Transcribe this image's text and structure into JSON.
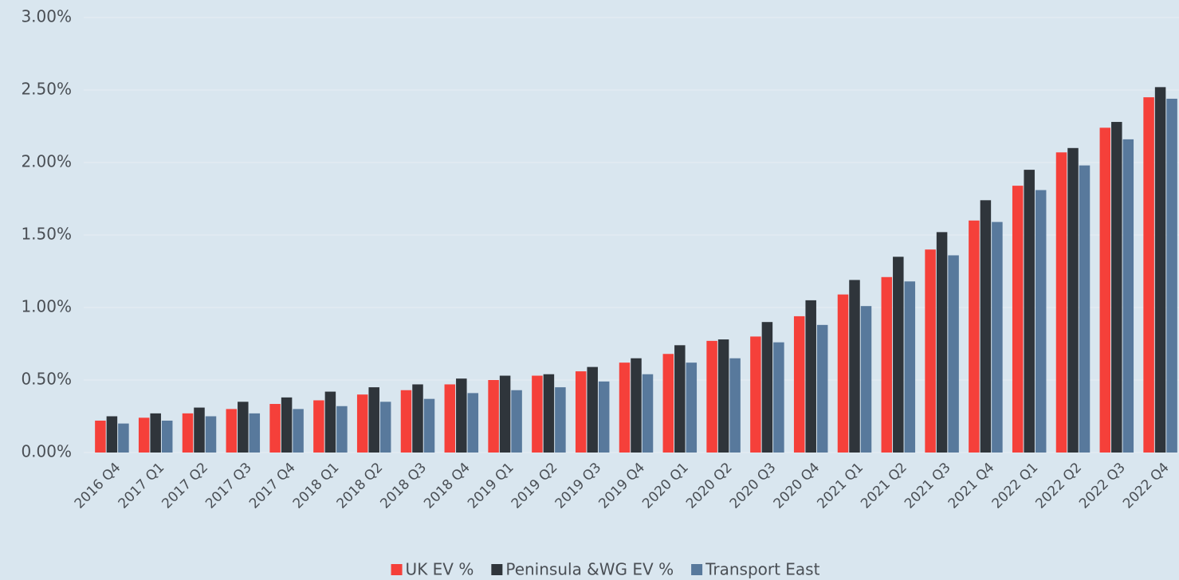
{
  "chart_data": {
    "type": "bar",
    "categories": [
      "2016 Q4",
      "2017 Q1",
      "2017 Q2",
      "2017 Q3",
      "2017 Q4",
      "2018 Q1",
      "2018 Q2",
      "2018 Q3",
      "2018 Q4",
      "2019 Q1",
      "2019 Q2",
      "2019 Q3",
      "2019 Q4",
      "2020 Q1",
      "2020 Q2",
      "2020 Q3",
      "2020 Q4",
      "2021 Q1",
      "2021 Q2",
      "2021 Q3",
      "2021 Q4",
      "2022 Q1",
      "2022 Q2",
      "2022 Q3",
      "2022 Q4"
    ],
    "series": [
      {
        "name": "UK EV %",
        "color": "#f5403a",
        "values": [
          0.22,
          0.24,
          0.27,
          0.3,
          0.335,
          0.36,
          0.4,
          0.43,
          0.47,
          0.5,
          0.53,
          0.56,
          0.62,
          0.68,
          0.77,
          0.8,
          0.94,
          1.09,
          1.21,
          1.4,
          1.6,
          1.84,
          2.07,
          2.24,
          2.45
        ]
      },
      {
        "name": "Peninsula &WG EV %",
        "color": "#2f353b",
        "values": [
          0.25,
          0.27,
          0.31,
          0.35,
          0.38,
          0.42,
          0.45,
          0.47,
          0.51,
          0.53,
          0.54,
          0.59,
          0.65,
          0.74,
          0.78,
          0.9,
          1.05,
          1.19,
          1.35,
          1.52,
          1.74,
          1.95,
          2.1,
          2.28,
          2.52
        ]
      },
      {
        "name": "Transport East",
        "color": "#58799c",
        "values": [
          0.2,
          0.22,
          0.25,
          0.27,
          0.3,
          0.32,
          0.35,
          0.37,
          0.41,
          0.43,
          0.45,
          0.49,
          0.54,
          0.62,
          0.65,
          0.76,
          0.88,
          1.01,
          1.18,
          1.36,
          1.59,
          1.81,
          1.98,
          2.16,
          2.44
        ]
      }
    ],
    "ylim": [
      0,
      3
    ],
    "yticks": [
      {
        "value": 0,
        "label": "0.00%"
      },
      {
        "value": 0.5,
        "label": "0.50%"
      },
      {
        "value": 1,
        "label": "1.00%"
      },
      {
        "value": 1.5,
        "label": "1.50%"
      },
      {
        "value": 2,
        "label": "2.00%"
      },
      {
        "value": 2.5,
        "label": "2.50%"
      },
      {
        "value": 3,
        "label": "3.00%"
      }
    ],
    "grid": true,
    "legend": "bottom"
  }
}
